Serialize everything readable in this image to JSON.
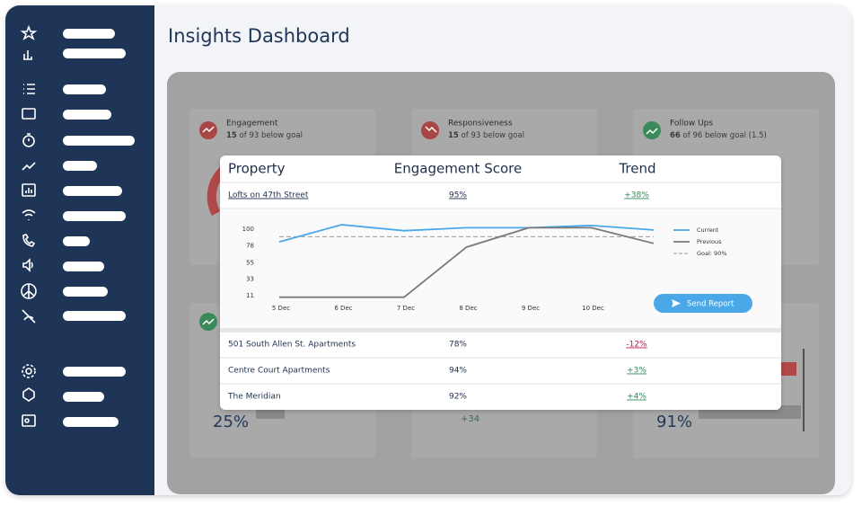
{
  "header": {
    "title": "Insights Dashboard"
  },
  "cards": [
    {
      "title": "Engagement",
      "count": "15",
      "detail": "of 93 below goal"
    },
    {
      "title": "Responsiveness",
      "count": "15",
      "detail": "of 93 below goal"
    },
    {
      "title": "Follow Ups",
      "count": "66",
      "detail": "of 96 below goal (1.5)"
    }
  ],
  "bottom_cards": [
    "25%",
    "+34",
    "91%"
  ],
  "table": {
    "headers": [
      "Property",
      "Engagement Score",
      "Trend"
    ],
    "rows": [
      [
        "Lofts on 47th Street",
        "95%",
        "+38%"
      ],
      [
        "501 South Allen St. Apartments",
        "78%",
        "-12%"
      ],
      [
        "Centre Court Apartments",
        "94%",
        "+3%"
      ],
      [
        "The Meridian",
        "92%",
        "+4%"
      ]
    ]
  },
  "chart_data": {
    "type": "line",
    "categories": [
      "5 Dec",
      "6 Dec",
      "7 Dec",
      "8 Dec",
      "9 Dec",
      "10 Dec",
      null
    ],
    "series": [
      {
        "name": "Current",
        "color": "#4aa8e8",
        "values": [
          83,
          106,
          98,
          102,
          102,
          105,
          99
        ]
      },
      {
        "name": "Previous",
        "color": "#7a7a7a",
        "values": [
          9,
          9,
          9,
          76,
          102,
          102,
          81
        ]
      }
    ],
    "goal": {
      "label": "Goal: 90%",
      "value": 90
    },
    "ylim": [
      5,
      110
    ],
    "yticks": [
      11,
      33,
      55,
      78,
      100
    ]
  },
  "button": {
    "label": "Send Report"
  }
}
